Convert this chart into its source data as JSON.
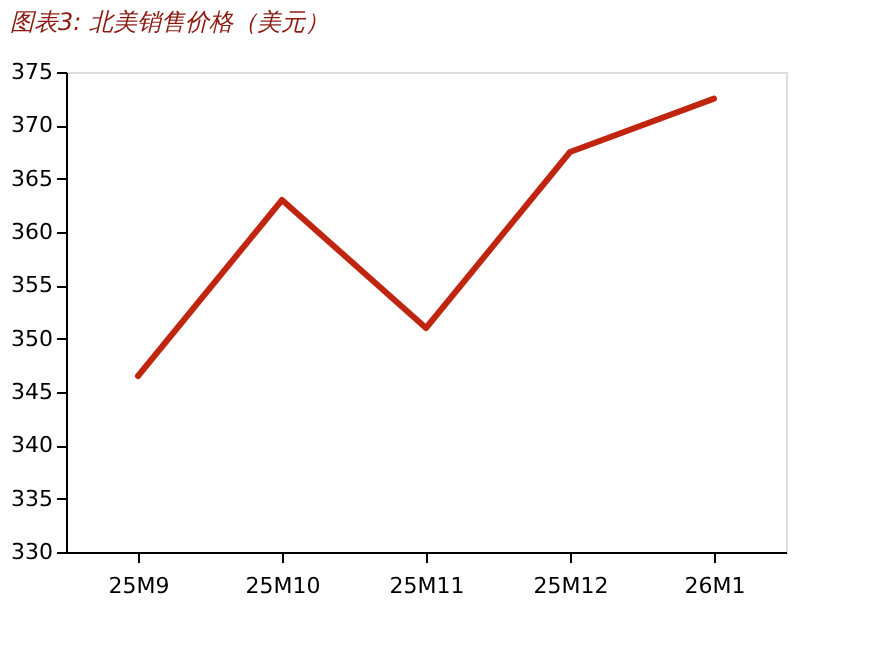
{
  "chart_data": {
    "type": "line",
    "title": "图表3: 北美销售价格（美元）",
    "categories": [
      "25M9",
      "25M10",
      "25M11",
      "25M12",
      "26M1"
    ],
    "series": [
      {
        "color": "#c0250f",
        "values": [
          346.5,
          363,
          351,
          367.5,
          372.5
        ]
      }
    ],
    "ylim": [
      330,
      375
    ],
    "yticks": [
      330,
      335,
      340,
      345,
      350,
      355,
      360,
      365,
      370,
      375
    ],
    "grid": false,
    "legend": false,
    "marker": "none",
    "line_style": "solid"
  }
}
